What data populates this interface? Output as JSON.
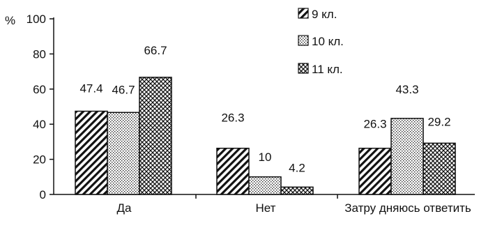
{
  "chart_data": {
    "type": "bar",
    "unit_label": "%",
    "categories": [
      "Да",
      "Нет",
      "Затру дняюсь ответить"
    ],
    "series": [
      {
        "name": "9 кл.",
        "values": [
          47.4,
          26.3,
          26.3
        ],
        "pattern": "diagonal-hatch"
      },
      {
        "name": "10 кл.",
        "values": [
          46.7,
          10,
          43.3
        ],
        "pattern": "dots"
      },
      {
        "name": "11 кл.",
        "values": [
          66.7,
          4.2,
          29.2
        ],
        "pattern": "crosshatch"
      }
    ],
    "data_labels": [
      [
        "47.4",
        "26.3",
        "26.3"
      ],
      [
        "46.7",
        "10",
        "43.3"
      ],
      [
        "66.7",
        "4.2",
        "29.2"
      ]
    ],
    "yticks": [
      "0",
      "20",
      "40",
      "60",
      "80",
      "100"
    ],
    "ylim": [
      0,
      100
    ],
    "grid": false,
    "legend_position": "top-right",
    "colors": {
      "ink": "#111111",
      "background": "#ffffff"
    }
  }
}
